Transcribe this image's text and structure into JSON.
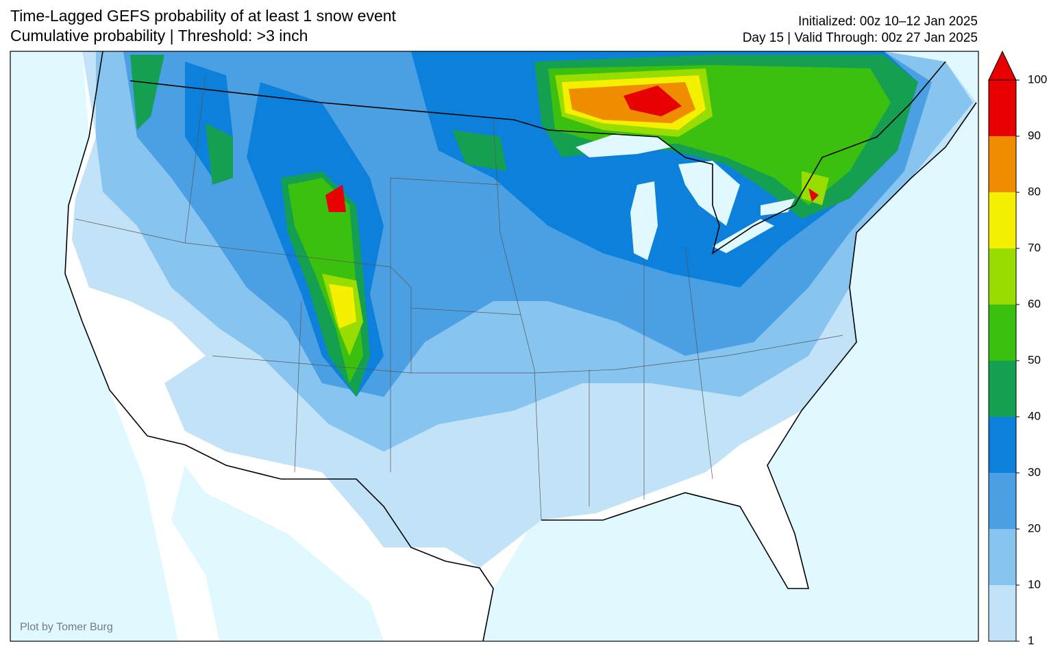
{
  "header": {
    "title_line1": "Time-Lagged GEFS probability of at least 1 snow event",
    "title_line2": "Cumulative probability | Threshold: >3 inch",
    "initialized": "Initialized: 00z 10–12 Jan 2025",
    "valid": "Day 15 | Valid Through: 00z 27 Jan 2025"
  },
  "credit": "Plot by Tomer Burg",
  "colorbar": {
    "ticks": [
      1,
      10,
      20,
      30,
      40,
      50,
      60,
      70,
      80,
      90,
      100
    ],
    "colors": [
      "#c2e2f8",
      "#88c4f0",
      "#4aa0e2",
      "#0c80da",
      "#14a050",
      "#3cc010",
      "#98dc00",
      "#f4f000",
      "#f08c00",
      "#e80000"
    ],
    "extend_color": "#e80000"
  }
}
